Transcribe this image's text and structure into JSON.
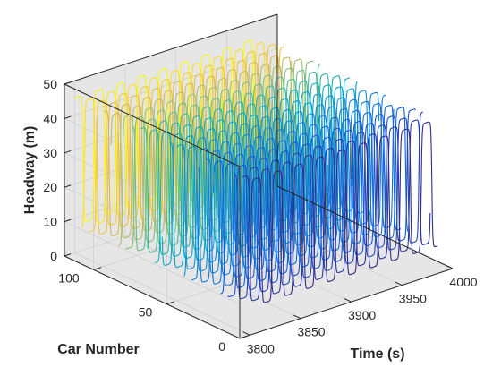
{
  "chart_data": {
    "type": "line",
    "title": "",
    "xlabel": "Time (s)",
    "ylabel": "Car Number",
    "zlabel": "Headway (m)",
    "xlim": [
      3790,
      4000
    ],
    "ylim": [
      0,
      120
    ],
    "zlim": [
      0,
      50
    ],
    "x_ticks": [
      3800,
      3850,
      3900,
      3950,
      4000
    ],
    "y_ticks": [
      0,
      50,
      100
    ],
    "z_ticks": [
      0,
      10,
      20,
      30,
      40,
      50
    ],
    "grid": true,
    "pane_color": "#e6e6e6",
    "colormap": "parula",
    "car_numbers": [
      0,
      5,
      10,
      15,
      20,
      25,
      30,
      35,
      40,
      45,
      50,
      55,
      60,
      65,
      70,
      75,
      80,
      85,
      90,
      95,
      100,
      105,
      110,
      115,
      120
    ],
    "headway_profile": {
      "low_m": 8,
      "high_m": 45,
      "wave_period_s": 21,
      "wave_speed_s_per_car": 0.9
    },
    "series": []
  },
  "colors": {
    "axis": "#262626",
    "grid": "#c8c8c8",
    "pane": "#e6e6e6"
  }
}
